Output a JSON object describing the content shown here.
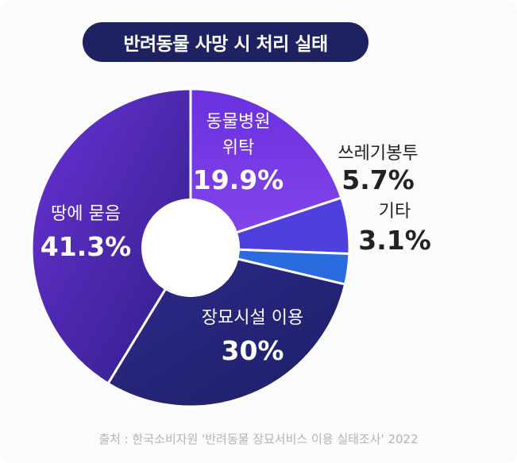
{
  "title": "반려동물 사망 시 처리 실태",
  "source": "출처 : 한국소비자원 '반려동물 장묘서비스 이용 실태조사' 2022",
  "colors": {
    "title_bg": "#1e2262",
    "background": "#fbfbfc",
    "slices": [
      "#7335e3",
      "#4f3fdf",
      "#2a6be0",
      "#25257a",
      "#4a25b0"
    ]
  },
  "chart_data": {
    "type": "pie",
    "donut": true,
    "title": "반려동물 사망 시 처리 실태",
    "slices": [
      {
        "name_lines": [
          "동물병원",
          "위탁"
        ],
        "value": 19.9,
        "value_label": "19.9%",
        "color": "#7335e3",
        "label_inside": true
      },
      {
        "name_lines": [
          "쓰레기봉투"
        ],
        "value": 5.7,
        "value_label": "5.7%",
        "color": "#4f3fdf",
        "label_inside": false
      },
      {
        "name_lines": [
          "기타"
        ],
        "value": 3.1,
        "value_label": "3.1%",
        "color": "#2a6be0",
        "label_inside": false
      },
      {
        "name_lines": [
          "장묘시설 이용"
        ],
        "value": 30,
        "value_label": "30%",
        "color": "#25257a",
        "label_inside": true
      },
      {
        "name_lines": [
          "땅에 묻음"
        ],
        "value": 41.3,
        "value_label": "41.3%",
        "color": "#4a25b0",
        "label_inside": true
      }
    ]
  }
}
